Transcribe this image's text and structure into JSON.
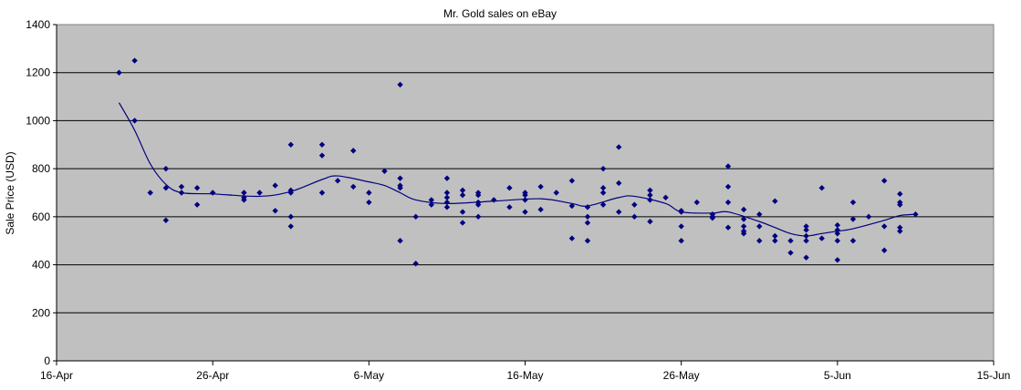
{
  "chart_data": {
    "type": "scatter",
    "title": "Mr. Gold sales on eBay",
    "xlabel": "",
    "ylabel": "Sale Price (USD)",
    "x_range": [
      "2010-04-16",
      "2010-06-15"
    ],
    "ylim": [
      0,
      1400
    ],
    "x_ticks": [
      "16-Apr",
      "26-Apr",
      "6-May",
      "16-May",
      "26-May",
      "5-Jun",
      "15-Jun"
    ],
    "y_ticks": [
      "0",
      "200",
      "400",
      "600",
      "800",
      "1000",
      "1200",
      "1400"
    ],
    "grid": "horizontal",
    "legend": "none",
    "colors": {
      "plot_background": "#c0c0c0",
      "marker": "#000080",
      "trend_line": "#000080",
      "grid": "#000000"
    },
    "series": [
      {
        "kind": "points",
        "points": [
          [
            "2010-04-20",
            1200
          ],
          [
            "2010-04-21",
            1250
          ],
          [
            "2010-04-21",
            1000
          ],
          [
            "2010-04-22",
            700
          ],
          [
            "2010-04-23",
            800
          ],
          [
            "2010-04-23",
            720
          ],
          [
            "2010-04-23",
            585
          ],
          [
            "2010-04-24",
            725
          ],
          [
            "2010-04-24",
            700
          ],
          [
            "2010-04-25",
            720
          ],
          [
            "2010-04-25",
            650
          ],
          [
            "2010-04-26",
            700
          ],
          [
            "2010-04-28",
            700
          ],
          [
            "2010-04-28",
            680
          ],
          [
            "2010-04-28",
            670
          ],
          [
            "2010-04-29",
            700
          ],
          [
            "2010-04-30",
            730
          ],
          [
            "2010-04-30",
            625
          ],
          [
            "2010-05-01",
            900
          ],
          [
            "2010-05-01",
            710
          ],
          [
            "2010-05-01",
            700
          ],
          [
            "2010-05-01",
            600
          ],
          [
            "2010-05-01",
            560
          ],
          [
            "2010-05-03",
            900
          ],
          [
            "2010-05-03",
            855
          ],
          [
            "2010-05-03",
            700
          ],
          [
            "2010-05-04",
            750
          ],
          [
            "2010-05-05",
            875
          ],
          [
            "2010-05-05",
            725
          ],
          [
            "2010-05-06",
            700
          ],
          [
            "2010-05-06",
            660
          ],
          [
            "2010-05-07",
            790
          ],
          [
            "2010-05-08",
            1150
          ],
          [
            "2010-05-08",
            760
          ],
          [
            "2010-05-08",
            730
          ],
          [
            "2010-05-08",
            720
          ],
          [
            "2010-05-08",
            500
          ],
          [
            "2010-05-09",
            600
          ],
          [
            "2010-05-09",
            405
          ],
          [
            "2010-05-10",
            670
          ],
          [
            "2010-05-10",
            650
          ],
          [
            "2010-05-11",
            760
          ],
          [
            "2010-05-11",
            700
          ],
          [
            "2010-05-11",
            680
          ],
          [
            "2010-05-11",
            660
          ],
          [
            "2010-05-11",
            640
          ],
          [
            "2010-05-12",
            710
          ],
          [
            "2010-05-12",
            690
          ],
          [
            "2010-05-12",
            620
          ],
          [
            "2010-05-12",
            575
          ],
          [
            "2010-05-13",
            700
          ],
          [
            "2010-05-13",
            690
          ],
          [
            "2010-05-13",
            660
          ],
          [
            "2010-05-13",
            650
          ],
          [
            "2010-05-13",
            600
          ],
          [
            "2010-05-14",
            670
          ],
          [
            "2010-05-15",
            720
          ],
          [
            "2010-05-15",
            640
          ],
          [
            "2010-05-16",
            700
          ],
          [
            "2010-05-16",
            690
          ],
          [
            "2010-05-16",
            670
          ],
          [
            "2010-05-16",
            620
          ],
          [
            "2010-05-17",
            725
          ],
          [
            "2010-05-17",
            630
          ],
          [
            "2010-05-18",
            700
          ],
          [
            "2010-05-19",
            750
          ],
          [
            "2010-05-19",
            645
          ],
          [
            "2010-05-19",
            510
          ],
          [
            "2010-05-20",
            640
          ],
          [
            "2010-05-20",
            600
          ],
          [
            "2010-05-20",
            575
          ],
          [
            "2010-05-20",
            500
          ],
          [
            "2010-05-21",
            800
          ],
          [
            "2010-05-21",
            720
          ],
          [
            "2010-05-21",
            700
          ],
          [
            "2010-05-21",
            650
          ],
          [
            "2010-05-22",
            890
          ],
          [
            "2010-05-22",
            740
          ],
          [
            "2010-05-22",
            620
          ],
          [
            "2010-05-23",
            650
          ],
          [
            "2010-05-23",
            600
          ],
          [
            "2010-05-24",
            710
          ],
          [
            "2010-05-24",
            690
          ],
          [
            "2010-05-24",
            670
          ],
          [
            "2010-05-24",
            580
          ],
          [
            "2010-05-25",
            680
          ],
          [
            "2010-05-26",
            625
          ],
          [
            "2010-05-26",
            620
          ],
          [
            "2010-05-26",
            560
          ],
          [
            "2010-05-26",
            500
          ],
          [
            "2010-05-27",
            660
          ],
          [
            "2010-05-28",
            610
          ],
          [
            "2010-05-28",
            600
          ],
          [
            "2010-05-28",
            595
          ],
          [
            "2010-05-29",
            810
          ],
          [
            "2010-05-29",
            725
          ],
          [
            "2010-05-29",
            660
          ],
          [
            "2010-05-29",
            555
          ],
          [
            "2010-05-30",
            630
          ],
          [
            "2010-05-30",
            590
          ],
          [
            "2010-05-30",
            560
          ],
          [
            "2010-05-30",
            540
          ],
          [
            "2010-05-30",
            530
          ],
          [
            "2010-05-31",
            610
          ],
          [
            "2010-05-31",
            560
          ],
          [
            "2010-05-31",
            500
          ],
          [
            "2010-06-01",
            665
          ],
          [
            "2010-06-01",
            520
          ],
          [
            "2010-06-01",
            500
          ],
          [
            "2010-06-02",
            500
          ],
          [
            "2010-06-02",
            450
          ],
          [
            "2010-06-03",
            560
          ],
          [
            "2010-06-03",
            545
          ],
          [
            "2010-06-03",
            520
          ],
          [
            "2010-06-03",
            500
          ],
          [
            "2010-06-03",
            430
          ],
          [
            "2010-06-04",
            720
          ],
          [
            "2010-06-04",
            510
          ],
          [
            "2010-06-05",
            565
          ],
          [
            "2010-06-05",
            545
          ],
          [
            "2010-06-05",
            530
          ],
          [
            "2010-06-05",
            500
          ],
          [
            "2010-06-05",
            420
          ],
          [
            "2010-06-06",
            660
          ],
          [
            "2010-06-06",
            590
          ],
          [
            "2010-06-06",
            500
          ],
          [
            "2010-06-07",
            600
          ],
          [
            "2010-06-08",
            750
          ],
          [
            "2010-06-08",
            560
          ],
          [
            "2010-06-08",
            460
          ],
          [
            "2010-06-09",
            695
          ],
          [
            "2010-06-09",
            660
          ],
          [
            "2010-06-09",
            650
          ],
          [
            "2010-06-09",
            555
          ],
          [
            "2010-06-09",
            540
          ],
          [
            "2010-06-10",
            610
          ]
        ]
      },
      {
        "kind": "trend",
        "points": [
          [
            "2010-04-20",
            1075
          ],
          [
            "2010-04-21",
            960
          ],
          [
            "2010-04-22",
            820
          ],
          [
            "2010-04-23",
            735
          ],
          [
            "2010-04-24",
            700
          ],
          [
            "2010-04-26",
            695
          ],
          [
            "2010-04-29",
            685
          ],
          [
            "2010-05-01",
            705
          ],
          [
            "2010-05-03",
            755
          ],
          [
            "2010-05-04",
            770
          ],
          [
            "2010-05-06",
            745
          ],
          [
            "2010-05-07",
            730
          ],
          [
            "2010-05-08",
            700
          ],
          [
            "2010-05-09",
            670
          ],
          [
            "2010-05-11",
            655
          ],
          [
            "2010-05-14",
            665
          ],
          [
            "2010-05-17",
            675
          ],
          [
            "2010-05-19",
            655
          ],
          [
            "2010-05-20",
            645
          ],
          [
            "2010-05-22",
            680
          ],
          [
            "2010-05-23",
            685
          ],
          [
            "2010-05-25",
            655
          ],
          [
            "2010-05-26",
            620
          ],
          [
            "2010-05-28",
            615
          ],
          [
            "2010-05-29",
            620
          ],
          [
            "2010-05-31",
            580
          ],
          [
            "2010-06-01",
            555
          ],
          [
            "2010-06-02",
            530
          ],
          [
            "2010-06-03",
            520
          ],
          [
            "2010-06-04",
            530
          ],
          [
            "2010-06-05",
            540
          ],
          [
            "2010-06-06",
            550
          ],
          [
            "2010-06-08",
            585
          ],
          [
            "2010-06-09",
            605
          ],
          [
            "2010-06-10",
            610
          ]
        ]
      }
    ]
  }
}
